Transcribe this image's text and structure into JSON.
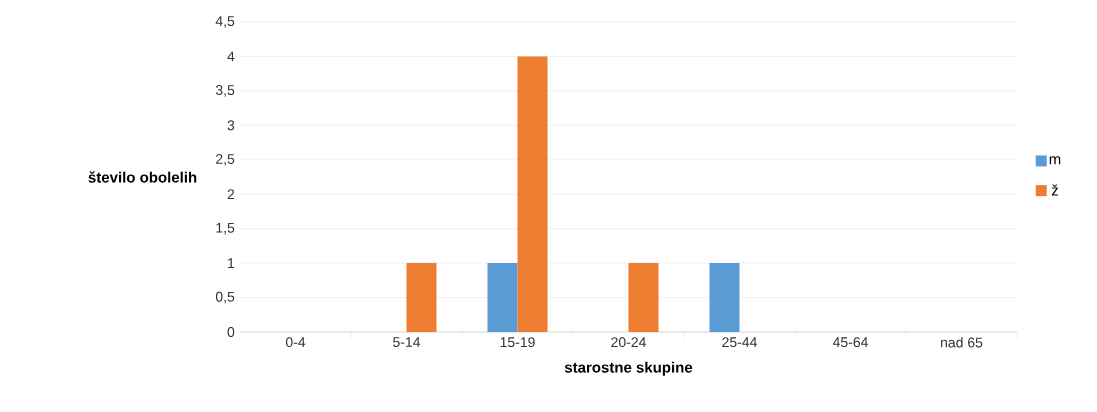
{
  "chart_data": {
    "type": "bar",
    "xlabel": "starostne skupine",
    "ylabel": "število obolelih",
    "categories": [
      "0-4",
      "5-14",
      "15-19",
      "20-24",
      "25-44",
      "45-64",
      "nad 65"
    ],
    "series": [
      {
        "name": "m",
        "color": "#5b9bd5",
        "values": [
          0,
          0,
          1,
          0,
          1,
          0,
          0
        ]
      },
      {
        "name": "ž",
        "color": "#ed7d31",
        "values": [
          0,
          1,
          4,
          1,
          0,
          0,
          0
        ]
      }
    ],
    "ylim": [
      0,
      4.5
    ],
    "yticks": [
      0,
      {
        "value": 0.5,
        "label": "0,5"
      },
      1,
      {
        "value": 1.5,
        "label": "1,5"
      },
      2,
      {
        "value": 2.5,
        "label": "2,5"
      },
      3,
      {
        "value": 3.5,
        "label": "3,5"
      },
      4,
      {
        "value": 4.5,
        "label": "4,5"
      }
    ],
    "grid": "y",
    "legend": "right"
  }
}
